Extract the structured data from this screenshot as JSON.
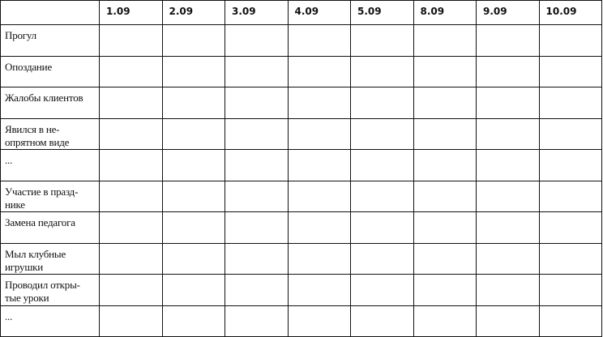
{
  "header": {
    "dates": [
      "1.09",
      "2.09",
      "3.09",
      "4.09",
      "5.09",
      "8.09",
      "9.09",
      "10.09"
    ]
  },
  "rows": [
    {
      "label": [
        "Прогул"
      ]
    },
    {
      "label": [
        "Опоздание"
      ]
    },
    {
      "label": [
        "Жалобы клиентов"
      ]
    },
    {
      "label": [
        "Явился в не-",
        "опрятном виде"
      ]
    },
    {
      "label": [
        "..."
      ]
    },
    {
      "label": [
        "Участие в празд-",
        "нике"
      ]
    },
    {
      "label": [
        "Замена педагога"
      ]
    },
    {
      "label": [
        "Мыл клубные",
        "игрушки"
      ]
    },
    {
      "label": [
        "Проводил откры-",
        "тые уроки"
      ]
    },
    {
      "label": [
        "..."
      ]
    }
  ]
}
